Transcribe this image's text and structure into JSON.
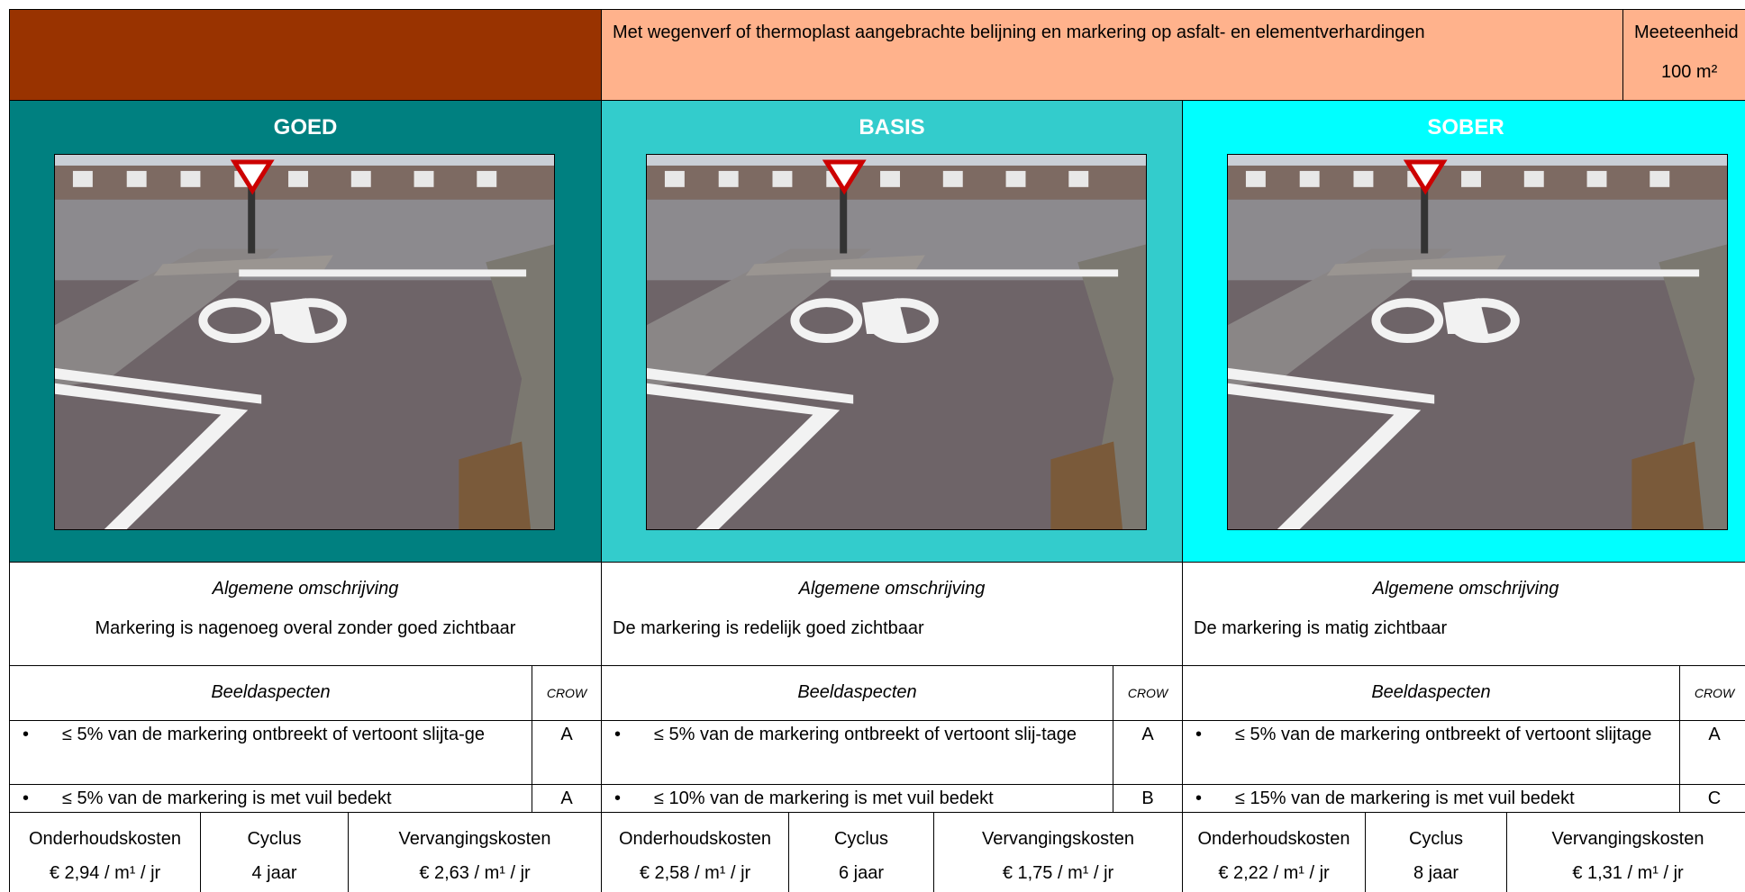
{
  "header": {
    "description": "Met wegenverf of thermoplast aangebrachte belijning en markering op asfalt- en elementverhardingen",
    "unit_label": "Meeteenheid",
    "unit_value": "100 m²"
  },
  "levels": [
    {
      "title": "GOED",
      "color": "#008080",
      "description_label": "Algemene omschrijving",
      "description": "Markering is nagenoeg overal zonder goed zichtbaar",
      "aspects_label": "Beeldaspecten",
      "crow_label": "CROW",
      "aspects": [
        {
          "text": "≤ 5% van de markering ontbreekt of vertoont slijta-ge",
          "crow": "A"
        },
        {
          "text": "≤ 5% van de markering is met vuil bedekt",
          "crow": "A"
        }
      ],
      "costs": {
        "maintenance_label": "Onderhoudskosten",
        "maintenance": "€ 2,94 / m¹ / jr",
        "cycle_label": "Cyclus",
        "cycle": "4 jaar",
        "replacement_label": "Vervangingskosten",
        "replacement": "€ 2,63 / m¹ / jr"
      }
    },
    {
      "title": "BASIS",
      "color": "#33CCCC",
      "description_label": "Algemene omschrijving",
      "description": "De markering is redelijk goed zichtbaar",
      "aspects_label": "Beeldaspecten",
      "crow_label": "CROW",
      "aspects": [
        {
          "text": "≤ 5% van de markering ontbreekt of vertoont slij-tage",
          "crow": "A"
        },
        {
          "text": "≤ 10% van de markering is met vuil bedekt",
          "crow": "B"
        }
      ],
      "costs": {
        "maintenance_label": "Onderhoudskosten",
        "maintenance": "€ 2,58 / m¹ / jr",
        "cycle_label": "Cyclus",
        "cycle": "6 jaar",
        "replacement_label": "Vervangingskosten",
        "replacement": "€ 1,75 / m¹ / jr"
      }
    },
    {
      "title": "SOBER",
      "color": "#00FFFF",
      "description_label": "Algemene omschrijving",
      "description": "De markering is matig zichtbaar",
      "aspects_label": "Beeldaspecten",
      "crow_label": "CROW",
      "aspects": [
        {
          "text": "≤ 5% van de markering ontbreekt of vertoont slijtage",
          "crow": "A"
        },
        {
          "text": "≤ 15% van de markering is met vuil bedekt",
          "crow": "C"
        }
      ],
      "costs": {
        "maintenance_label": "Onderhoudskosten",
        "maintenance": "€ 2,22 / m¹ / jr",
        "cycle_label": "Cyclus",
        "cycle": "8 jaar",
        "replacement_label": "Vervangingskosten",
        "replacement": "€ 1,31 / m¹ / jr"
      }
    }
  ]
}
